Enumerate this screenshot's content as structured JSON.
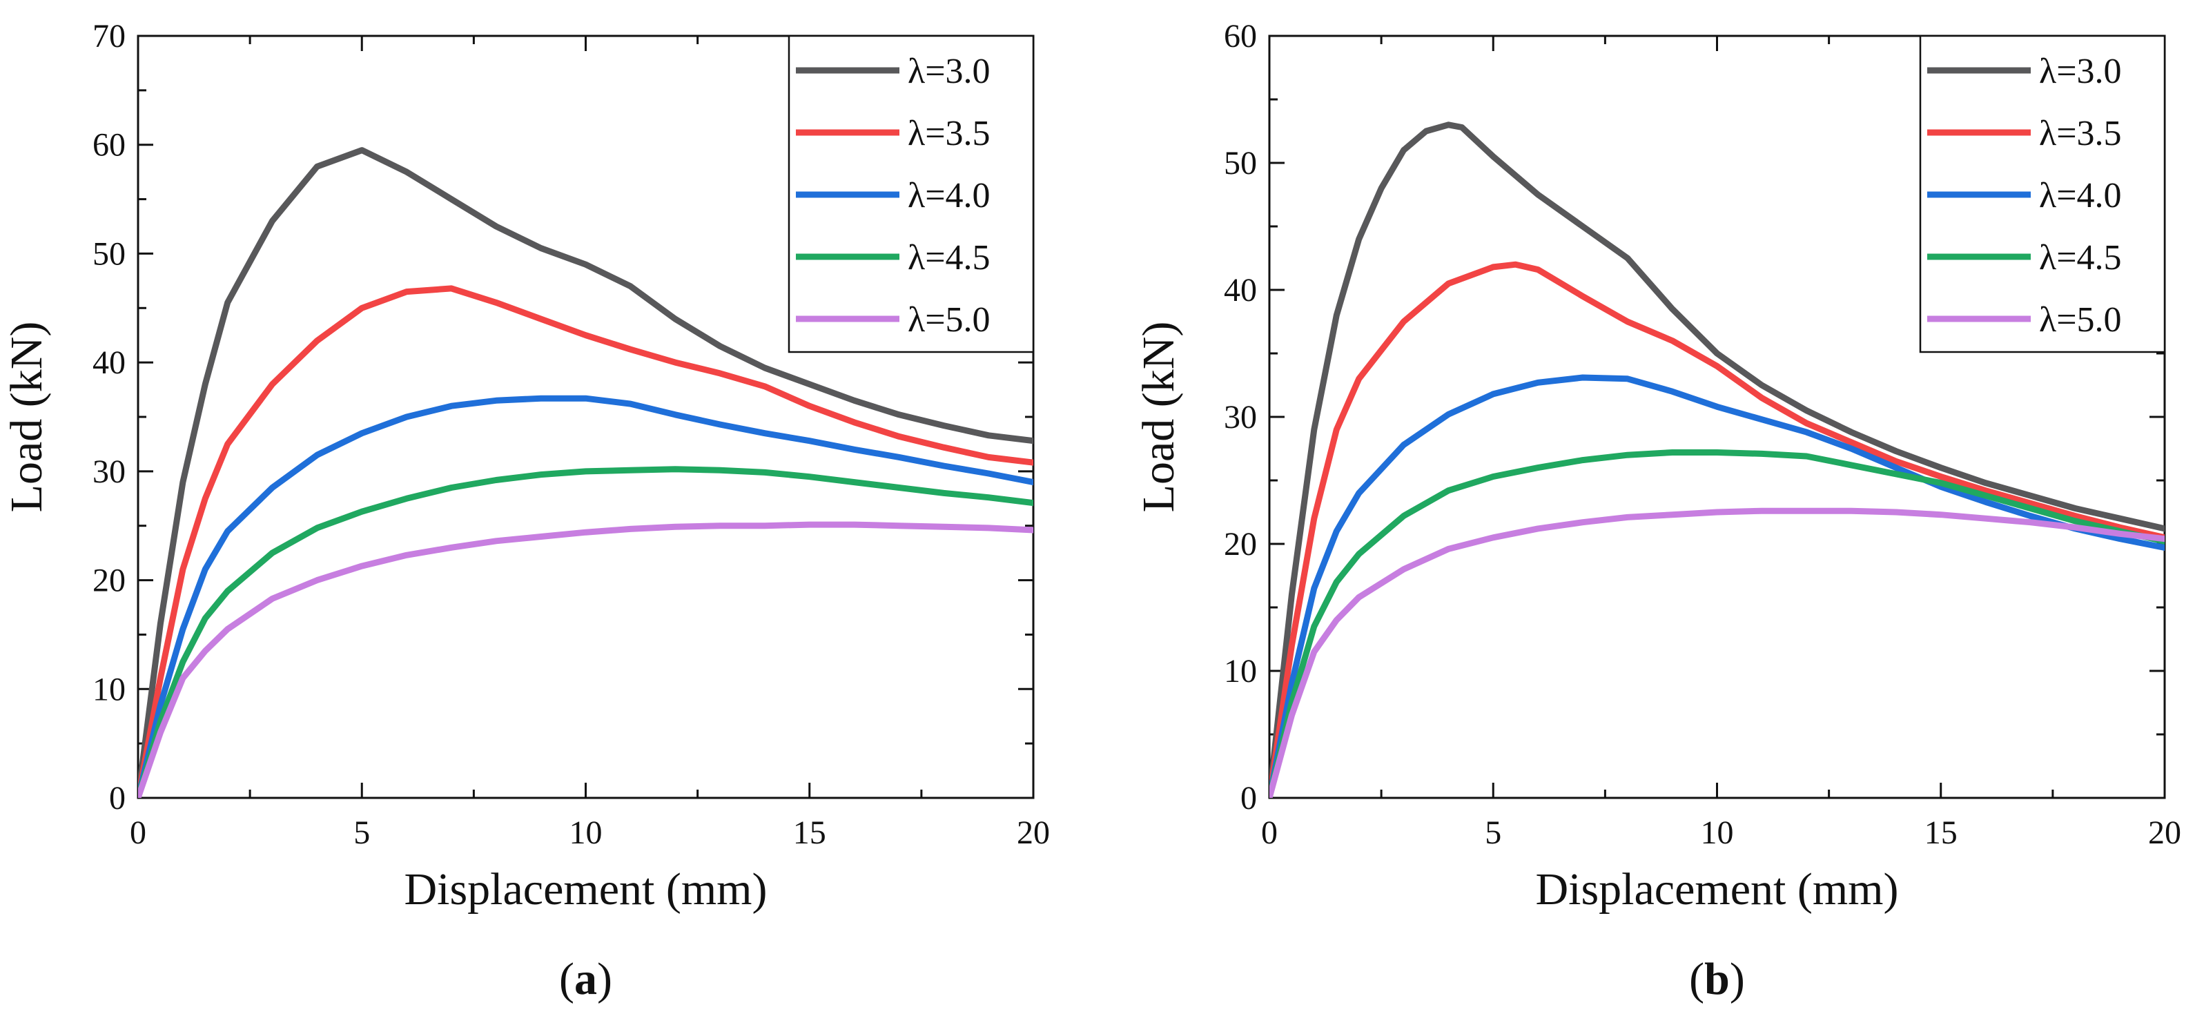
{
  "chart_data": [
    {
      "type": "line",
      "panel_label": "a",
      "xlabel": "Displacement (mm)",
      "ylabel": "Load (kN)",
      "xlim": [
        0,
        20
      ],
      "ylim": [
        0,
        70
      ],
      "xticks": [
        0,
        5,
        10,
        15,
        20
      ],
      "yticks": [
        0,
        10,
        20,
        30,
        40,
        50,
        60,
        70
      ],
      "legend_position": "top-right",
      "series": [
        {
          "name": "λ=3.0",
          "color": "#58585a",
          "x": [
            0,
            0.5,
            1,
            1.5,
            2,
            3,
            4,
            5,
            6,
            7,
            8,
            9,
            10,
            11,
            12,
            13,
            14,
            15,
            16,
            17,
            18,
            19,
            20
          ],
          "y": [
            0,
            16,
            29,
            38,
            45.5,
            53,
            58,
            59.5,
            57.5,
            55,
            52.5,
            50.5,
            49,
            47,
            44,
            41.5,
            39.5,
            38,
            36.5,
            35.2,
            34.2,
            33.3,
            32.8
          ]
        },
        {
          "name": "λ=3.5",
          "color": "#f24444",
          "x": [
            0,
            0.5,
            1,
            1.5,
            2,
            3,
            4,
            5,
            6,
            7,
            8,
            9,
            10,
            11,
            12,
            13,
            14,
            15,
            16,
            17,
            18,
            19,
            20
          ],
          "y": [
            0,
            11,
            21,
            27.5,
            32.5,
            38,
            42,
            45,
            46.5,
            46.8,
            45.5,
            44,
            42.5,
            41.2,
            40,
            39,
            37.8,
            36,
            34.5,
            33.2,
            32.2,
            31.3,
            30.8
          ]
        },
        {
          "name": "λ=4.0",
          "color": "#1f6fd9",
          "x": [
            0,
            0.5,
            1,
            1.5,
            2,
            3,
            4,
            5,
            6,
            7,
            8,
            9,
            10,
            11,
            12,
            13,
            14,
            15,
            16,
            17,
            18,
            19,
            20
          ],
          "y": [
            0,
            8.5,
            15.5,
            21,
            24.5,
            28.5,
            31.5,
            33.5,
            35,
            36,
            36.5,
            36.7,
            36.7,
            36.2,
            35.2,
            34.3,
            33.5,
            32.8,
            32,
            31.3,
            30.5,
            29.8,
            29
          ]
        },
        {
          "name": "λ=4.5",
          "color": "#20a860",
          "x": [
            0,
            0.5,
            1,
            1.5,
            2,
            3,
            4,
            5,
            6,
            7,
            8,
            9,
            10,
            11,
            12,
            13,
            14,
            15,
            16,
            17,
            18,
            19,
            20
          ],
          "y": [
            0,
            7,
            12.5,
            16.5,
            19,
            22.5,
            24.8,
            26.3,
            27.5,
            28.5,
            29.2,
            29.7,
            30,
            30.1,
            30.2,
            30.1,
            29.9,
            29.5,
            29,
            28.5,
            28,
            27.6,
            27.1
          ]
        },
        {
          "name": "λ=5.0",
          "color": "#c77ee0",
          "x": [
            0,
            0.5,
            1,
            1.5,
            2,
            3,
            4,
            5,
            6,
            7,
            8,
            9,
            10,
            11,
            12,
            13,
            14,
            15,
            16,
            17,
            18,
            19,
            20
          ],
          "y": [
            0,
            6,
            11,
            13.5,
            15.5,
            18.3,
            20,
            21.3,
            22.3,
            23,
            23.6,
            24,
            24.4,
            24.7,
            24.9,
            25,
            25,
            25.1,
            25.1,
            25,
            24.9,
            24.8,
            24.6
          ]
        }
      ]
    },
    {
      "type": "line",
      "panel_label": "b",
      "xlabel": "Displacement (mm)",
      "ylabel": "Load (kN)",
      "xlim": [
        0,
        20
      ],
      "ylim": [
        0,
        60
      ],
      "xticks": [
        0,
        5,
        10,
        15,
        20
      ],
      "yticks": [
        0,
        10,
        20,
        30,
        40,
        50,
        60
      ],
      "legend_position": "top-right",
      "series": [
        {
          "name": "λ=3.0",
          "color": "#58585a",
          "x": [
            0,
            0.5,
            1,
            1.5,
            2,
            2.5,
            3,
            3.5,
            4,
            4.3,
            5,
            6,
            7,
            8,
            9,
            10,
            11,
            12,
            13,
            14,
            15,
            16,
            17,
            18,
            19,
            20
          ],
          "y": [
            0,
            16,
            29,
            38,
            44,
            48,
            51,
            52.5,
            53,
            52.8,
            50.5,
            47.5,
            45,
            42.5,
            38.5,
            35,
            32.5,
            30.5,
            28.8,
            27.3,
            26,
            24.8,
            23.8,
            22.8,
            22,
            21.2
          ]
        },
        {
          "name": "λ=3.5",
          "color": "#f24444",
          "x": [
            0,
            0.5,
            1,
            1.5,
            2,
            3,
            4,
            5,
            5.5,
            6,
            7,
            8,
            9,
            10,
            11,
            12,
            13,
            14,
            15,
            16,
            17,
            18,
            19,
            20
          ],
          "y": [
            0,
            12,
            22,
            29,
            33,
            37.5,
            40.5,
            41.8,
            42,
            41.6,
            39.5,
            37.5,
            36,
            34,
            31.5,
            29.5,
            28,
            26.5,
            25.3,
            24.2,
            23.2,
            22.2,
            21.3,
            20.5
          ]
        },
        {
          "name": "λ=4.0",
          "color": "#1f6fd9",
          "x": [
            0,
            0.5,
            1,
            1.5,
            2,
            3,
            4,
            5,
            6,
            7,
            8,
            9,
            10,
            11,
            12,
            13,
            14,
            15,
            16,
            17,
            18,
            19,
            20
          ],
          "y": [
            0,
            9,
            16.5,
            21,
            24,
            27.8,
            30.2,
            31.8,
            32.7,
            33.1,
            33,
            32,
            30.8,
            29.8,
            28.8,
            27.5,
            26,
            24.5,
            23.3,
            22.2,
            21.2,
            20.4,
            19.7
          ]
        },
        {
          "name": "λ=4.5",
          "color": "#20a860",
          "x": [
            0,
            0.5,
            1,
            1.5,
            2,
            3,
            4,
            5,
            6,
            7,
            8,
            9,
            10,
            11,
            12,
            13,
            14,
            15,
            16,
            17,
            18,
            19,
            20
          ],
          "y": [
            0,
            7.5,
            13.5,
            17,
            19.2,
            22.2,
            24.2,
            25.3,
            26,
            26.6,
            27,
            27.2,
            27.2,
            27.1,
            26.9,
            26.2,
            25.5,
            24.8,
            23.8,
            22.8,
            21.8,
            21,
            20.2
          ]
        },
        {
          "name": "λ=5.0",
          "color": "#c77ee0",
          "x": [
            0,
            0.5,
            1,
            1.5,
            2,
            3,
            4,
            5,
            6,
            7,
            8,
            9,
            10,
            11,
            12,
            13,
            14,
            15,
            16,
            17,
            18,
            19,
            20
          ],
          "y": [
            0,
            6.5,
            11.5,
            14,
            15.8,
            18,
            19.6,
            20.5,
            21.2,
            21.7,
            22.1,
            22.3,
            22.5,
            22.6,
            22.6,
            22.6,
            22.5,
            22.3,
            22,
            21.7,
            21.3,
            20.8,
            20.4
          ]
        }
      ]
    }
  ]
}
